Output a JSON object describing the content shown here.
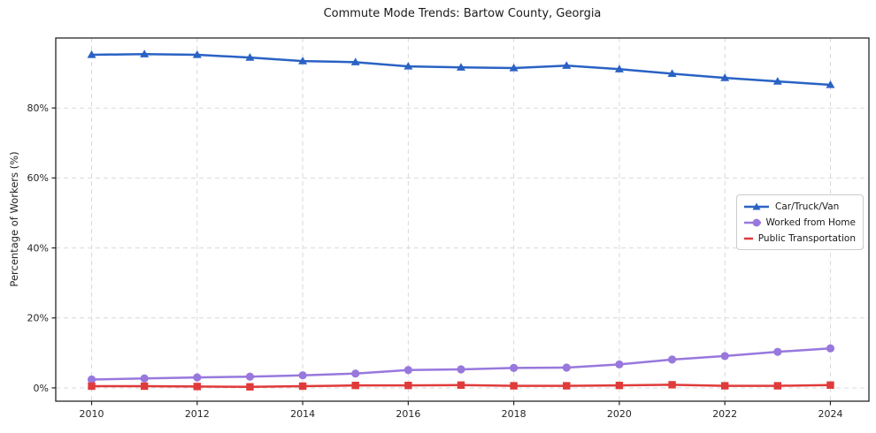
{
  "page": {
    "background": "#ffffff"
  },
  "chart_data": {
    "type": "line",
    "title": "Commute Mode Trends: Bartow County, Georgia",
    "xlabel": "",
    "ylabel": "Percentage of Workers (%)",
    "x": [
      2010,
      2011,
      2012,
      2013,
      2014,
      2015,
      2016,
      2017,
      2018,
      2019,
      2020,
      2021,
      2022,
      2023,
      2024
    ],
    "series": [
      {
        "name": "Car/Truck/Van",
        "color": "#2a62c4",
        "marker": "triangle",
        "values": [
          95.2,
          95.4,
          95.2,
          94.4,
          93.4,
          93.1,
          91.9,
          91.6,
          91.4,
          92.1,
          91.1,
          89.8,
          88.6,
          87.6,
          86.6
        ]
      },
      {
        "name": "Worked from Home",
        "color": "#9878dd",
        "marker": "circle",
        "values": [
          2.4,
          2.7,
          3.0,
          3.2,
          3.6,
          4.1,
          5.1,
          5.3,
          5.7,
          5.8,
          6.7,
          8.1,
          9.1,
          10.3,
          11.3
        ]
      },
      {
        "name": "Public Transportation",
        "color": "#e03a3a",
        "marker": "square",
        "values": [
          0.5,
          0.5,
          0.4,
          0.3,
          0.5,
          0.7,
          0.7,
          0.8,
          0.6,
          0.6,
          0.7,
          0.9,
          0.6,
          0.6,
          0.8
        ]
      }
    ],
    "xlim": [
      2009.32,
      2024.73
    ],
    "ylim": [
      -3.8,
      100.0
    ],
    "xticks": {
      "values": [
        2010,
        2012,
        2014,
        2016,
        2018,
        2020,
        2022,
        2024
      ],
      "labels": [
        "2010",
        "2012",
        "2014",
        "2016",
        "2018",
        "2020",
        "2022",
        "2024"
      ]
    },
    "yticks": {
      "values": [
        0,
        20,
        40,
        60,
        80
      ],
      "labels": [
        "0%",
        "20%",
        "40%",
        "60%",
        "80%"
      ]
    },
    "grid": "dashed-both-axes",
    "legend": {
      "position": "center-right",
      "entries": [
        "Car/Truck/Van",
        "Worked from Home",
        "Public Transportation"
      ]
    }
  },
  "style": {
    "grid_color": "#d9d9d9",
    "spine_color": "#262626",
    "tick_color": "#262626",
    "tick_label_color": "#262626",
    "title_color": "#1a1a1a",
    "legend_border": "#cccccc",
    "legend_background": "#ffffff",
    "line_width": 2.5
  }
}
